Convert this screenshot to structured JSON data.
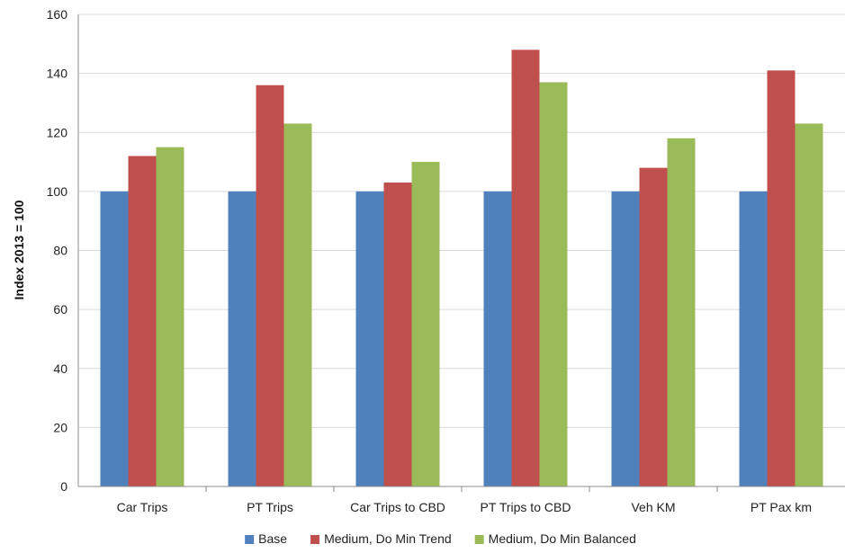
{
  "chart_data": {
    "type": "bar",
    "title": "",
    "xlabel": "",
    "ylabel": "Index 2013 = 100",
    "ylim": [
      0,
      160
    ],
    "yticks": [
      0,
      20,
      40,
      60,
      80,
      100,
      120,
      140,
      160
    ],
    "grid": true,
    "legend_position": "bottom",
    "categories": [
      "Car Trips",
      "PT Trips",
      "Car Trips to CBD",
      "PT Trips to CBD",
      "Veh KM",
      "PT Pax km"
    ],
    "series": [
      {
        "name": "Base",
        "color": "#4f81bd",
        "values": [
          100,
          100,
          100,
          100,
          100,
          100
        ]
      },
      {
        "name": "Medium, Do Min Trend",
        "color": "#c0504d",
        "values": [
          112,
          136,
          103,
          148,
          108,
          141
        ]
      },
      {
        "name": "Medium, Do Min Balanced",
        "color": "#9bbb59",
        "values": [
          115,
          123,
          110,
          137,
          118,
          123
        ]
      }
    ]
  }
}
